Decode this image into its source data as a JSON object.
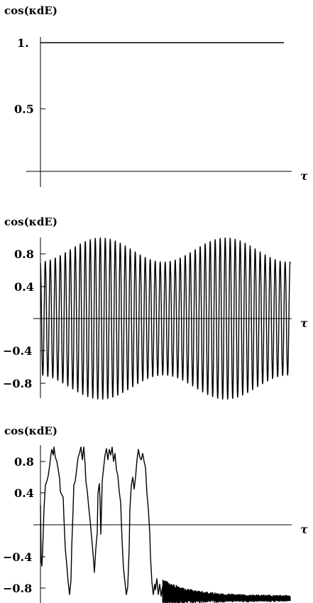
{
  "chart_data": [
    {
      "type": "line",
      "ylabel": "cos(κdE)",
      "xlabel": "τ",
      "yticks": [
        "1.",
        "0.5"
      ],
      "ytick_values": [
        1.0,
        0.5
      ],
      "ylim": [
        0,
        1.05
      ],
      "series": [
        {
          "description": "constant",
          "y_constant": 1.0
        }
      ]
    },
    {
      "type": "line",
      "ylabel": "cos(κdE)",
      "xlabel": "τ",
      "yticks": [
        "0.8",
        "0.4",
        "−0.4",
        "−0.8"
      ],
      "ytick_values": [
        0.8,
        0.4,
        -0.4,
        -0.8
      ],
      "ylim": [
        -1.0,
        1.0
      ],
      "series": [
        {
          "cycles": 50,
          "envelope_min": 0.7,
          "envelope_max": 1.0,
          "envelope_beats": 2
        }
      ]
    },
    {
      "type": "line",
      "ylabel": "cos(κdE)",
      "xlabel": "τ",
      "yticks": [
        "0.8",
        "0.4",
        "−0.4",
        "−0.8"
      ],
      "ytick_values": [
        0.8,
        0.4,
        -0.4,
        -0.8
      ],
      "ylim": [
        -1.0,
        1.0
      ],
      "series": [
        {
          "description": "revivals then decay to noisy about -0.93"
        }
      ]
    }
  ]
}
